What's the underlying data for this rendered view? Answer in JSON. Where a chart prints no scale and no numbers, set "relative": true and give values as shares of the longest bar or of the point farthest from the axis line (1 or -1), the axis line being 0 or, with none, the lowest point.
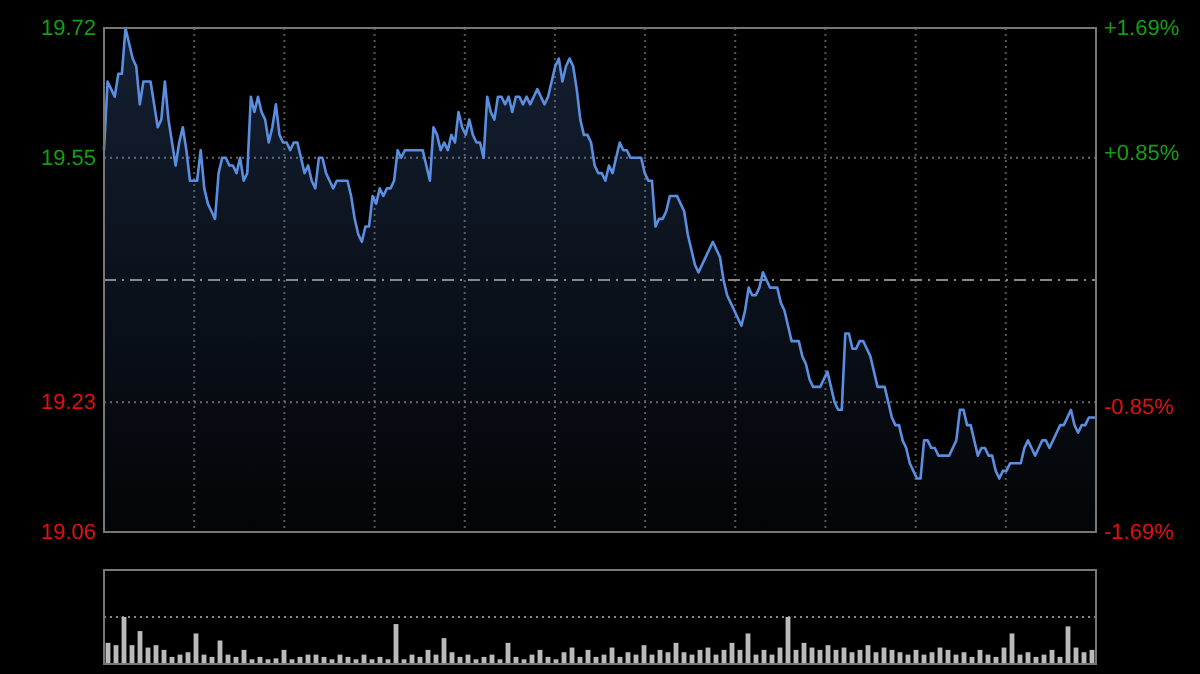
{
  "chart_data": [
    {
      "type": "area",
      "categories": [
        null,
        null,
        null,
        null,
        null,
        null,
        null,
        null,
        null,
        null,
        null,
        null,
        null,
        null,
        null,
        null,
        null,
        null,
        null,
        null,
        null,
        null,
        null,
        null,
        null,
        null,
        null,
        null,
        null,
        null,
        null,
        null,
        null,
        null,
        null,
        null,
        null,
        null,
        null,
        null,
        null,
        null,
        null,
        null,
        null,
        null,
        null,
        null,
        null,
        null,
        null,
        null,
        null,
        null,
        null,
        null,
        null,
        null,
        null,
        null,
        null,
        null,
        null,
        null,
        null,
        null,
        null,
        null,
        null,
        null,
        null,
        null,
        null,
        null,
        null,
        null,
        null,
        null,
        null,
        null,
        null,
        null,
        null,
        null,
        null,
        null,
        null,
        null,
        null,
        null,
        null,
        null,
        null,
        null,
        null,
        null,
        null,
        null,
        null,
        null,
        null,
        null,
        null,
        null,
        null,
        null,
        null,
        null,
        null,
        null,
        null,
        null,
        null,
        null,
        null,
        null,
        null,
        null,
        null,
        null,
        null,
        null,
        null,
        null,
        null,
        null,
        null,
        null,
        null,
        null,
        null,
        null,
        null,
        null,
        null,
        null,
        null,
        null,
        null,
        null,
        null,
        null,
        null,
        null,
        null,
        null,
        null,
        null,
        null,
        null,
        null,
        null,
        null,
        null,
        null,
        null,
        null,
        null,
        null,
        null,
        null,
        null,
        null,
        null,
        null,
        null,
        null,
        null,
        null,
        null,
        null,
        null,
        null,
        null,
        null,
        null,
        null,
        null,
        null,
        null,
        null,
        null,
        null,
        null,
        null,
        null,
        null,
        null,
        null,
        null,
        null,
        null,
        null,
        null,
        null,
        null,
        null,
        null,
        null,
        null,
        null,
        null,
        null,
        null,
        null,
        null,
        null,
        null,
        null,
        null,
        null,
        null,
        null,
        null,
        null,
        null,
        null,
        null,
        null,
        null,
        null,
        null,
        null,
        null,
        null,
        null,
        null,
        null,
        null,
        null,
        null,
        null,
        null,
        null,
        null,
        null,
        null,
        null,
        null,
        null,
        null,
        null,
        null,
        null,
        null,
        null,
        null,
        null,
        null,
        null,
        null,
        null,
        null,
        null,
        null,
        null,
        null,
        null,
        null,
        null,
        null,
        null,
        null,
        null,
        null,
        null,
        null,
        null,
        null,
        null,
        null,
        null,
        null,
        null,
        null,
        null,
        null,
        null
      ],
      "series": [
        {
          "color": "#5a8ee0",
          "values": [
            19.56,
            19.65,
            19.64,
            19.63,
            19.66,
            19.66,
            19.72,
            19.7,
            19.68,
            19.67,
            19.62,
            19.65,
            19.65,
            19.65,
            19.62,
            19.59,
            19.6,
            19.65,
            19.6,
            19.57,
            19.54,
            19.57,
            19.59,
            19.56,
            19.52,
            19.52,
            19.52,
            19.56,
            19.51,
            19.49,
            19.48,
            19.47,
            19.53,
            19.55,
            19.55,
            19.54,
            19.54,
            19.53,
            19.55,
            19.52,
            19.53,
            19.63,
            19.61,
            19.63,
            19.61,
            19.6,
            19.57,
            19.59,
            19.62,
            19.58,
            19.57,
            19.57,
            19.56,
            19.57,
            19.57,
            19.55,
            19.53,
            19.54,
            19.52,
            19.51,
            19.55,
            19.55,
            19.53,
            19.52,
            19.51,
            19.52,
            19.52,
            19.52,
            19.52,
            19.5,
            19.47,
            19.45,
            19.44,
            19.46,
            19.46,
            19.5,
            19.49,
            19.51,
            19.5,
            19.51,
            19.51,
            19.52,
            19.56,
            19.55,
            19.56,
            19.56,
            19.56,
            19.56,
            19.56,
            19.56,
            19.54,
            19.52,
            19.59,
            19.58,
            19.56,
            19.57,
            19.56,
            19.58,
            19.57,
            19.61,
            19.59,
            19.58,
            19.6,
            19.58,
            19.57,
            19.57,
            19.55,
            19.63,
            19.61,
            19.6,
            19.63,
            19.63,
            19.62,
            19.63,
            19.61,
            19.63,
            19.63,
            19.62,
            19.63,
            19.62,
            19.63,
            19.64,
            19.63,
            19.62,
            19.63,
            19.65,
            19.67,
            19.68,
            19.65,
            19.67,
            19.68,
            19.67,
            19.64,
            19.6,
            19.58,
            19.58,
            19.57,
            19.54,
            19.53,
            19.53,
            19.52,
            19.54,
            19.53,
            19.55,
            19.57,
            19.56,
            19.56,
            19.55,
            19.55,
            19.55,
            19.55,
            19.53,
            19.52,
            19.52,
            19.46,
            19.47,
            19.47,
            19.48,
            19.5,
            19.5,
            19.5,
            19.49,
            19.48,
            19.45,
            19.43,
            19.41,
            19.4,
            19.41,
            19.42,
            19.43,
            19.44,
            19.43,
            19.42,
            19.39,
            19.37,
            19.36,
            19.35,
            19.34,
            19.33,
            19.35,
            19.38,
            19.37,
            19.37,
            19.38,
            19.4,
            19.39,
            19.38,
            19.38,
            19.38,
            19.36,
            19.35,
            19.33,
            19.31,
            19.31,
            19.31,
            19.29,
            19.28,
            19.26,
            19.25,
            19.25,
            19.25,
            19.26,
            19.27,
            19.25,
            19.23,
            19.22,
            19.22,
            19.32,
            19.32,
            19.3,
            19.3,
            19.31,
            19.31,
            19.3,
            19.29,
            19.27,
            19.25,
            19.25,
            19.25,
            19.23,
            19.21,
            19.2,
            19.2,
            19.18,
            19.17,
            19.15,
            19.14,
            19.13,
            19.13,
            19.18,
            19.18,
            19.17,
            19.17,
            19.16,
            19.16,
            19.16,
            19.16,
            19.17,
            19.18,
            19.22,
            19.22,
            19.2,
            19.2,
            19.18,
            19.16,
            19.17,
            19.17,
            19.16,
            19.16,
            19.14,
            19.13,
            19.14,
            19.14,
            19.15,
            19.15,
            19.15,
            19.15,
            19.17,
            19.18,
            19.17,
            19.16,
            19.17,
            19.18,
            19.18,
            19.17,
            19.18,
            19.19,
            19.2,
            19.2,
            19.21,
            19.22,
            19.2,
            19.19,
            19.2,
            19.2,
            19.21,
            19.21,
            19.21
          ]
        }
      ],
      "ylim": [
        19.06,
        19.72
      ],
      "yticks": [
        19.06,
        19.23,
        19.55,
        19.72
      ],
      "y2lim": [
        -1.69,
        1.69
      ],
      "y2ticks": [
        {
          "value": -1.69,
          "label": "-1.69%"
        },
        {
          "value": -0.85,
          "label": "-0.85%"
        },
        {
          "value": 0.85,
          "label": "+0.85%"
        },
        {
          "value": 1.69,
          "label": "+1.69%"
        }
      ],
      "ref_lines": [
        {
          "axis": "y",
          "value": 19.39,
          "line_style": "dashed"
        }
      ],
      "grid": true
    },
    {
      "type": "bar",
      "relative": true,
      "ref_lines": [
        {
          "axis": "y",
          "value": 1,
          "line_style": "dotted"
        }
      ],
      "color": "#bbbbbb",
      "categories": [
        null,
        null,
        null,
        null,
        null,
        null,
        null,
        null,
        null,
        null,
        null,
        null,
        null,
        null,
        null,
        null,
        null,
        null,
        null,
        null,
        null,
        null,
        null,
        null,
        null,
        null,
        null,
        null,
        null,
        null,
        null,
        null,
        null,
        null,
        null,
        null,
        null,
        null,
        null,
        null,
        null,
        null,
        null,
        null,
        null,
        null,
        null,
        null,
        null,
        null,
        null,
        null,
        null,
        null,
        null,
        null,
        null,
        null,
        null,
        null,
        null,
        null,
        null,
        null,
        null,
        null,
        null,
        null,
        null,
        null,
        null,
        null,
        null,
        null,
        null,
        null,
        null,
        null,
        null,
        null,
        null,
        null,
        null,
        null,
        null,
        null,
        null,
        null,
        null,
        null,
        null,
        null,
        null,
        null,
        null,
        null,
        null,
        null,
        null,
        null,
        null,
        null,
        null,
        null,
        null,
        null,
        null,
        null,
        null,
        null,
        null,
        null,
        null,
        null,
        null,
        null,
        null,
        null,
        null,
        null,
        null,
        null,
        null,
        null
      ],
      "values": [
        0.45,
        0.4,
        1.0,
        0.4,
        0.7,
        0.35,
        0.4,
        0.3,
        0.15,
        0.2,
        0.25,
        0.65,
        0.2,
        0.15,
        0.5,
        0.2,
        0.15,
        0.3,
        0.1,
        0.15,
        0.1,
        0.12,
        0.3,
        0.1,
        0.15,
        0.2,
        0.2,
        0.15,
        0.1,
        0.2,
        0.15,
        0.1,
        0.2,
        0.1,
        0.15,
        0.1,
        0.85,
        0.1,
        0.2,
        0.15,
        0.3,
        0.2,
        0.55,
        0.25,
        0.15,
        0.2,
        0.1,
        0.15,
        0.2,
        0.1,
        0.45,
        0.15,
        0.1,
        0.2,
        0.3,
        0.15,
        0.1,
        0.25,
        0.35,
        0.15,
        0.3,
        0.15,
        0.2,
        0.35,
        0.15,
        0.25,
        0.2,
        0.4,
        0.2,
        0.3,
        0.25,
        0.45,
        0.25,
        0.2,
        0.3,
        0.35,
        0.2,
        0.3,
        0.45,
        0.3,
        0.65,
        0.2,
        0.3,
        0.2,
        0.35,
        1.0,
        0.3,
        0.45,
        0.35,
        0.3,
        0.4,
        0.3,
        0.35,
        0.25,
        0.3,
        0.4,
        0.25,
        0.35,
        0.3,
        0.25,
        0.2,
        0.3,
        0.2,
        0.25,
        0.35,
        0.3,
        0.2,
        0.25,
        0.15,
        0.3,
        0.2,
        0.15,
        0.35,
        0.65,
        0.2,
        0.25,
        0.15,
        0.2,
        0.3,
        0.15,
        0.8,
        0.35,
        0.25,
        0.3
      ]
    }
  ]
}
